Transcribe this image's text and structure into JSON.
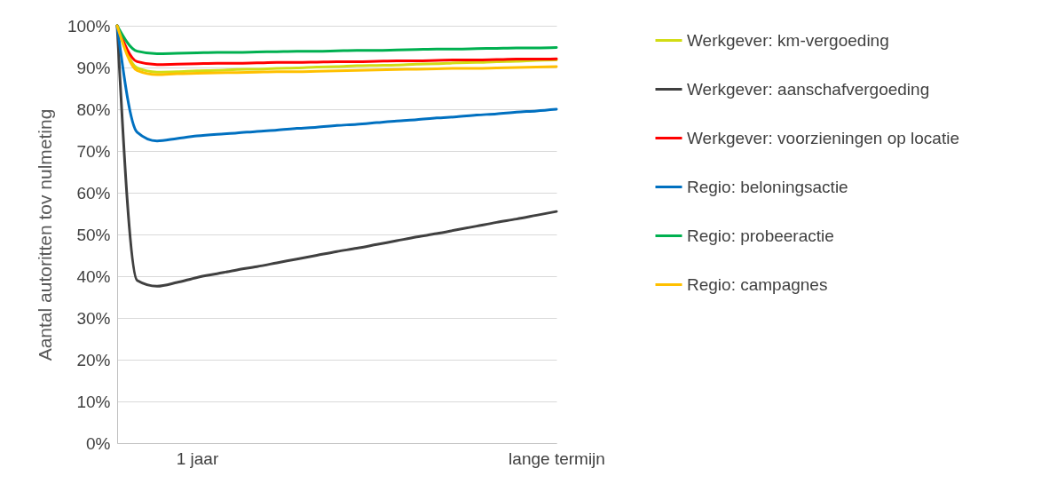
{
  "chart_data": {
    "type": "line",
    "ylabel": "Aantal autoritten tov nulmeting",
    "categories": [
      null,
      null,
      null,
      null,
      "1 jaar",
      null,
      null,
      null,
      null,
      null,
      null,
      null,
      null,
      null,
      null,
      null,
      null,
      null,
      null,
      null,
      null,
      null,
      "lange termijn"
    ],
    "ylim": [
      0,
      100
    ],
    "yticks": [
      {
        "value": 0,
        "label": "0%"
      },
      {
        "value": 10,
        "label": "10%"
      },
      {
        "value": 20,
        "label": "20%"
      },
      {
        "value": 30,
        "label": "30%"
      },
      {
        "value": 40,
        "label": "40%"
      },
      {
        "value": 50,
        "label": "50%"
      },
      {
        "value": 60,
        "label": "60%"
      },
      {
        "value": 70,
        "label": "70%"
      },
      {
        "value": 80,
        "label": "80%"
      },
      {
        "value": 90,
        "label": "90%"
      },
      {
        "value": 100,
        "label": "100%"
      }
    ],
    "series": [
      {
        "name": "Werkgever: km-vergoeding",
        "color": "#d2dc14",
        "values": [
          100,
          89.9,
          88.9,
          89,
          89.2,
          89.3,
          89.5,
          89.6,
          89.8,
          89.9,
          90.1,
          90.2,
          90.4,
          90.5,
          90.6,
          90.8,
          90.9,
          91.1,
          91.2,
          91.4,
          91.5,
          91.7,
          91.8
        ]
      },
      {
        "name": "Werkgever: aanschafvergoeding",
        "color": "#404040",
        "values": [
          100,
          39,
          37.6,
          38.5,
          39.7,
          40.6,
          41.5,
          42.3,
          43.2,
          44.1,
          45,
          45.9,
          46.7,
          47.6,
          48.5,
          49.4,
          50.2,
          51.1,
          52,
          52.9,
          53.7,
          54.6,
          55.5
        ]
      },
      {
        "name": "Werkgever: voorzieningen op locatie",
        "color": "#ff0000",
        "values": [
          100,
          91.4,
          90.7,
          90.8,
          90.9,
          91,
          91,
          91.1,
          91.2,
          91.2,
          91.3,
          91.4,
          91.4,
          91.5,
          91.6,
          91.6,
          91.7,
          91.8,
          91.8,
          91.9,
          92,
          92,
          92.1
        ]
      },
      {
        "name": "Regio: beloningsactie",
        "color": "#0070c0",
        "values": [
          100,
          74.5,
          72.4,
          73,
          73.6,
          74,
          74.3,
          74.7,
          75,
          75.4,
          75.7,
          76.1,
          76.4,
          76.8,
          77.2,
          77.5,
          77.9,
          78.2,
          78.6,
          78.9,
          79.3,
          79.6,
          80
        ]
      },
      {
        "name": "Regio: probeeractie",
        "color": "#00b050",
        "values": [
          100,
          93.9,
          93.3,
          93.4,
          93.5,
          93.6,
          93.6,
          93.7,
          93.8,
          93.9,
          93.9,
          94,
          94.1,
          94.1,
          94.2,
          94.3,
          94.4,
          94.4,
          94.5,
          94.6,
          94.7,
          94.7,
          94.8
        ]
      },
      {
        "name": "Regio: campagnes",
        "color": "#ffc000",
        "values": [
          100,
          89.3,
          88.3,
          88.5,
          88.6,
          88.7,
          88.8,
          88.9,
          89,
          89,
          89.1,
          89.2,
          89.3,
          89.4,
          89.5,
          89.6,
          89.7,
          89.8,
          89.8,
          89.9,
          90,
          90.1,
          90.2
        ]
      }
    ],
    "grid": "y",
    "legend": "right",
    "line_style": "solid"
  }
}
